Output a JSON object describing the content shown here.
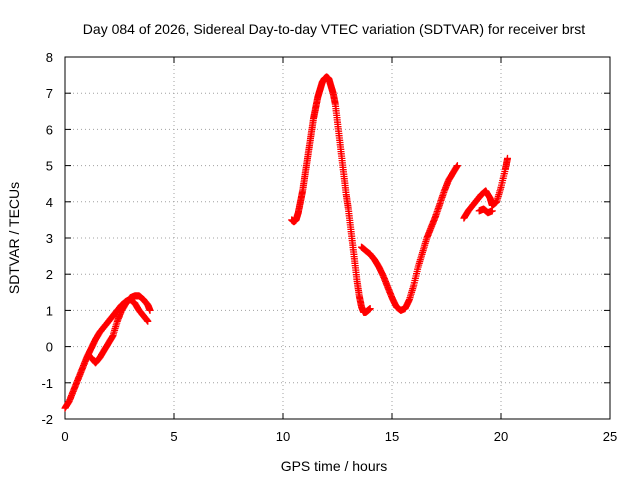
{
  "chart_data": {
    "type": "scatter",
    "title": "Day 084 of 2026, Sidereal Day-to-day VTEC variation (SDTVAR) for receiver brst",
    "xlabel": "GPS time / hours",
    "ylabel": "SDTVAR / TECUs",
    "xlim": [
      0,
      25
    ],
    "ylim": [
      -2,
      8
    ],
    "xticks": [
      "0",
      "5",
      "10",
      "15",
      "20",
      "25"
    ],
    "yticks": [
      "-2",
      "-1",
      "0",
      "1",
      "2",
      "3",
      "4",
      "5",
      "6",
      "7",
      "8"
    ],
    "grid": true,
    "marker": "plus",
    "series": [
      {
        "color": "#ff0000",
        "segments": [
          [
            [
              0.0,
              -1.7
            ],
            [
              0.2,
              -1.5
            ],
            [
              0.4,
              -1.2
            ],
            [
              0.6,
              -0.9
            ],
            [
              0.8,
              -0.6
            ],
            [
              1.0,
              -0.3
            ],
            [
              1.2,
              -0.05
            ],
            [
              1.4,
              0.2
            ],
            [
              1.6,
              0.4
            ],
            [
              1.8,
              0.55
            ],
            [
              2.0,
              0.7
            ],
            [
              2.2,
              0.85
            ],
            [
              2.4,
              1.0
            ],
            [
              2.6,
              1.15
            ],
            [
              2.8,
              1.25
            ],
            [
              3.0,
              1.3
            ],
            [
              3.2,
              1.2
            ],
            [
              3.4,
              1.0
            ],
            [
              3.6,
              0.85
            ],
            [
              3.8,
              0.7
            ]
          ],
          [
            [
              1.2,
              -0.3
            ],
            [
              1.4,
              -0.45
            ],
            [
              1.6,
              -0.3
            ],
            [
              1.8,
              -0.1
            ],
            [
              2.0,
              0.1
            ],
            [
              2.2,
              0.3
            ],
            [
              2.4,
              0.7
            ],
            [
              2.6,
              1.0
            ],
            [
              2.8,
              1.2
            ],
            [
              3.0,
              1.35
            ],
            [
              3.2,
              1.4
            ],
            [
              3.4,
              1.4
            ],
            [
              3.6,
              1.3
            ],
            [
              3.8,
              1.15
            ],
            [
              3.9,
              1.0
            ]
          ],
          [
            [
              10.4,
              3.5
            ],
            [
              10.5,
              3.45
            ],
            [
              10.6,
              3.5
            ],
            [
              10.7,
              3.7
            ],
            [
              10.8,
              4.0
            ],
            [
              10.9,
              4.3
            ],
            [
              11.0,
              4.7
            ],
            [
              11.1,
              5.1
            ],
            [
              11.2,
              5.5
            ],
            [
              11.3,
              5.9
            ],
            [
              11.4,
              6.3
            ],
            [
              11.5,
              6.6
            ],
            [
              11.6,
              6.9
            ],
            [
              11.7,
              7.1
            ],
            [
              11.8,
              7.3
            ],
            [
              11.9,
              7.4
            ],
            [
              12.0,
              7.45
            ],
            [
              12.1,
              7.4
            ],
            [
              12.2,
              7.2
            ],
            [
              12.3,
              7.0
            ],
            [
              12.4,
              6.7
            ],
            [
              12.5,
              6.2
            ],
            [
              12.6,
              5.7
            ],
            [
              12.7,
              5.2
            ],
            [
              12.8,
              4.7
            ],
            [
              12.9,
              4.2
            ],
            [
              13.0,
              3.8
            ],
            [
              13.1,
              3.3
            ],
            [
              13.2,
              2.8
            ],
            [
              13.3,
              2.3
            ],
            [
              13.4,
              1.8
            ],
            [
              13.5,
              1.4
            ],
            [
              13.6,
              1.1
            ],
            [
              13.7,
              0.95
            ],
            [
              13.8,
              0.95
            ],
            [
              13.9,
              1.0
            ],
            [
              14.0,
              1.05
            ]
          ],
          [
            [
              13.6,
              2.75
            ],
            [
              13.8,
              2.65
            ],
            [
              14.0,
              2.55
            ],
            [
              14.2,
              2.4
            ],
            [
              14.4,
              2.2
            ],
            [
              14.6,
              1.95
            ],
            [
              14.8,
              1.65
            ],
            [
              15.0,
              1.35
            ],
            [
              15.2,
              1.1
            ],
            [
              15.4,
              1.0
            ],
            [
              15.6,
              1.05
            ],
            [
              15.8,
              1.3
            ],
            [
              16.0,
              1.7
            ],
            [
              16.2,
              2.2
            ],
            [
              16.4,
              2.6
            ],
            [
              16.6,
              3.0
            ],
            [
              16.8,
              3.3
            ],
            [
              17.0,
              3.6
            ],
            [
              17.2,
              3.95
            ],
            [
              17.4,
              4.3
            ],
            [
              17.6,
              4.6
            ],
            [
              17.8,
              4.8
            ],
            [
              18.0,
              5.0
            ]
          ],
          [
            [
              18.3,
              3.55
            ],
            [
              18.5,
              3.75
            ],
            [
              18.7,
              3.9
            ],
            [
              18.9,
              4.05
            ],
            [
              19.1,
              4.2
            ],
            [
              19.3,
              4.3
            ],
            [
              19.5,
              4.1
            ],
            [
              19.6,
              3.9
            ],
            [
              19.8,
              4.0
            ],
            [
              20.0,
              4.4
            ],
            [
              20.2,
              4.9
            ],
            [
              20.3,
              5.2
            ]
          ],
          [
            [
              19.0,
              3.75
            ],
            [
              19.2,
              3.8
            ],
            [
              19.4,
              3.7
            ],
            [
              19.6,
              3.75
            ]
          ]
        ]
      }
    ]
  }
}
